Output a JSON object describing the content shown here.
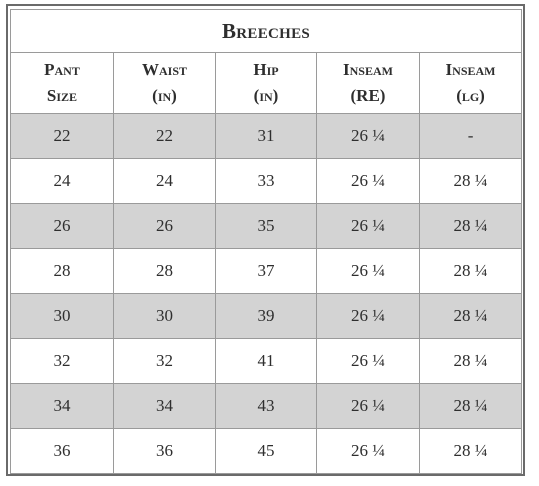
{
  "title": "Breeches",
  "headers": [
    {
      "line1": "Pant",
      "line2": "Size"
    },
    {
      "line1": "Waist",
      "line2": "(in)"
    },
    {
      "line1": "Hip",
      "line2": "(in)"
    },
    {
      "line1": "Inseam",
      "line2": "(RE)"
    },
    {
      "line1": "Inseam",
      "line2": "(lg)"
    }
  ],
  "rows": [
    [
      "22",
      "22",
      "31",
      "26 ¼",
      "-"
    ],
    [
      "24",
      "24",
      "33",
      "26 ¼",
      "28 ¼"
    ],
    [
      "26",
      "26",
      "35",
      "26 ¼",
      "28 ¼"
    ],
    [
      "28",
      "28",
      "37",
      "26 ¼",
      "28 ¼"
    ],
    [
      "30",
      "30",
      "39",
      "26 ¼",
      "28 ¼"
    ],
    [
      "32",
      "32",
      "41",
      "26 ¼",
      "28 ¼"
    ],
    [
      "34",
      "34",
      "43",
      "26 ¼",
      "28 ¼"
    ],
    [
      "36",
      "36",
      "45",
      "26 ¼",
      "28 ¼"
    ]
  ],
  "colors": {
    "shaded_row": "#d3d3d3",
    "border": "#9a9a9a",
    "text": "#2e2e2e"
  }
}
